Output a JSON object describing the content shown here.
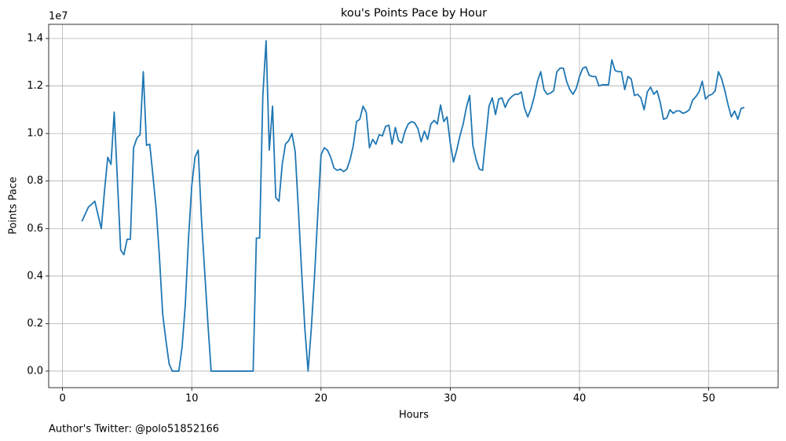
{
  "chart_data": {
    "type": "line",
    "title": "kou's Points Pace by Hour",
    "xlabel": "Hours",
    "ylabel": "Points Pace",
    "y_offset_text": "1e7",
    "footer": "Author's Twitter: @polo51852166",
    "grid": true,
    "xlim": [
      -1.07,
      55.37
    ],
    "ylim": [
      -695000,
      14595000
    ],
    "xticks": [
      0,
      10,
      20,
      30,
      40,
      50
    ],
    "yticks": [
      {
        "value": 0,
        "label": "0.0"
      },
      {
        "value": 2000000,
        "label": "0.2"
      },
      {
        "value": 4000000,
        "label": "0.4"
      },
      {
        "value": 6000000,
        "label": "0.6"
      },
      {
        "value": 8000000,
        "label": "0.8"
      },
      {
        "value": 10000000,
        "label": "1.0"
      },
      {
        "value": 12000000,
        "label": "1.2"
      },
      {
        "value": 14000000,
        "label": "1.4"
      }
    ],
    "x": [
      1.5,
      2,
      2.5,
      3,
      3.25,
      3.5,
      3.75,
      4,
      4.25,
      4.5,
      4.75,
      5,
      5.25,
      5.5,
      5.75,
      6,
      6.25,
      6.5,
      6.75,
      7,
      7.25,
      7.5,
      7.75,
      8,
      8.25,
      8.5,
      8.75,
      9,
      9.25,
      9.5,
      9.75,
      10,
      10.25,
      10.5,
      10.75,
      11,
      11.25,
      11.5,
      14.75,
      15,
      15.25,
      15.5,
      15.75,
      16,
      16.25,
      16.5,
      16.75,
      17,
      17.25,
      17.5,
      17.75,
      18,
      18.25,
      18.5,
      18.75,
      19,
      19.25,
      19.5,
      19.75,
      20,
      20.25,
      20.5,
      20.75,
      21,
      21.25,
      21.5,
      21.75,
      22,
      22.25,
      22.5,
      22.75,
      23,
      23.25,
      23.5,
      23.75,
      24,
      24.25,
      24.5,
      24.75,
      25,
      25.25,
      25.5,
      25.75,
      26,
      26.25,
      26.5,
      26.75,
      27,
      27.25,
      27.5,
      27.75,
      28,
      28.25,
      28.5,
      28.75,
      29,
      29.25,
      29.5,
      29.75,
      30,
      30.25,
      30.5,
      30.75,
      31,
      31.25,
      31.5,
      31.75,
      32,
      32.25,
      32.5,
      32.75,
      33,
      33.25,
      33.5,
      33.75,
      34,
      34.25,
      34.5,
      34.75,
      35,
      35.25,
      35.5,
      35.75,
      36,
      36.25,
      36.5,
      36.75,
      37,
      37.25,
      37.5,
      37.75,
      38,
      38.25,
      38.5,
      38.75,
      39,
      39.25,
      39.5,
      39.75,
      40,
      40.25,
      40.5,
      40.75,
      41,
      41.25,
      41.5,
      41.75,
      42,
      42.25,
      42.5,
      42.75,
      43,
      43.25,
      43.5,
      43.75,
      44,
      44.25,
      44.5,
      44.75,
      45,
      45.25,
      45.5,
      45.75,
      46,
      46.25,
      46.5,
      46.75,
      47,
      47.25,
      47.5,
      47.75,
      48,
      48.25,
      48.5,
      48.75,
      49,
      49.25,
      49.5,
      49.75,
      50,
      50.25,
      50.5,
      50.75,
      51,
      51.25,
      51.5,
      51.75,
      52,
      52.25,
      52.5,
      52.75
    ],
    "series": [
      {
        "name": "kou",
        "color": "#1f77b4",
        "values": [
          6300000,
          6900000,
          7150000,
          6000000,
          7600000,
          9000000,
          8700000,
          10900000,
          8000000,
          5100000,
          4900000,
          5550000,
          5550000,
          9400000,
          9800000,
          9950000,
          12600000,
          9500000,
          9550000,
          8200000,
          6800000,
          4800000,
          2400000,
          1300000,
          300000,
          0,
          0,
          0,
          1000000,
          2800000,
          5600000,
          7800000,
          9000000,
          9300000,
          6400000,
          4200000,
          2000000,
          0,
          0,
          5600000,
          5600000,
          11600000,
          13900000,
          9300000,
          11150000,
          7300000,
          7150000,
          8700000,
          9550000,
          9700000,
          10000000,
          9250000,
          6800000,
          4200000,
          1800000,
          0,
          1800000,
          4000000,
          6600000,
          9100000,
          9400000,
          9300000,
          9000000,
          8550000,
          8450000,
          8500000,
          8400000,
          8500000,
          8900000,
          9500000,
          10500000,
          10600000,
          11150000,
          10900000,
          9400000,
          9750000,
          9550000,
          9950000,
          9900000,
          10300000,
          10350000,
          9550000,
          10250000,
          9700000,
          9600000,
          10100000,
          10400000,
          10500000,
          10450000,
          10200000,
          9650000,
          10100000,
          9750000,
          10400000,
          10550000,
          10400000,
          11200000,
          10500000,
          10700000,
          9600000,
          8800000,
          9300000,
          9900000,
          10400000,
          11100000,
          11600000,
          9500000,
          8900000,
          8500000,
          8450000,
          9800000,
          11150000,
          11500000,
          10800000,
          11450000,
          11500000,
          11100000,
          11400000,
          11550000,
          11650000,
          11650000,
          11750000,
          11050000,
          10700000,
          11050000,
          11550000,
          12200000,
          12600000,
          11850000,
          11650000,
          11700000,
          11800000,
          12600000,
          12750000,
          12750000,
          12200000,
          11850000,
          11650000,
          11900000,
          12400000,
          12750000,
          12800000,
          12450000,
          12400000,
          12400000,
          12000000,
          12050000,
          12050000,
          12050000,
          13100000,
          12650000,
          12600000,
          12600000,
          11850000,
          12400000,
          12300000,
          11600000,
          11650000,
          11500000,
          11000000,
          11750000,
          11950000,
          11650000,
          11800000,
          11300000,
          10600000,
          10650000,
          11000000,
          10850000,
          10950000,
          10950000,
          10850000,
          10900000,
          11000000,
          11400000,
          11550000,
          11750000,
          12200000,
          11450000,
          11600000,
          11650000,
          11800000,
          12600000,
          12300000,
          11800000,
          11200000,
          10700000,
          10950000,
          10600000,
          11050000,
          11100000
        ]
      }
    ]
  }
}
